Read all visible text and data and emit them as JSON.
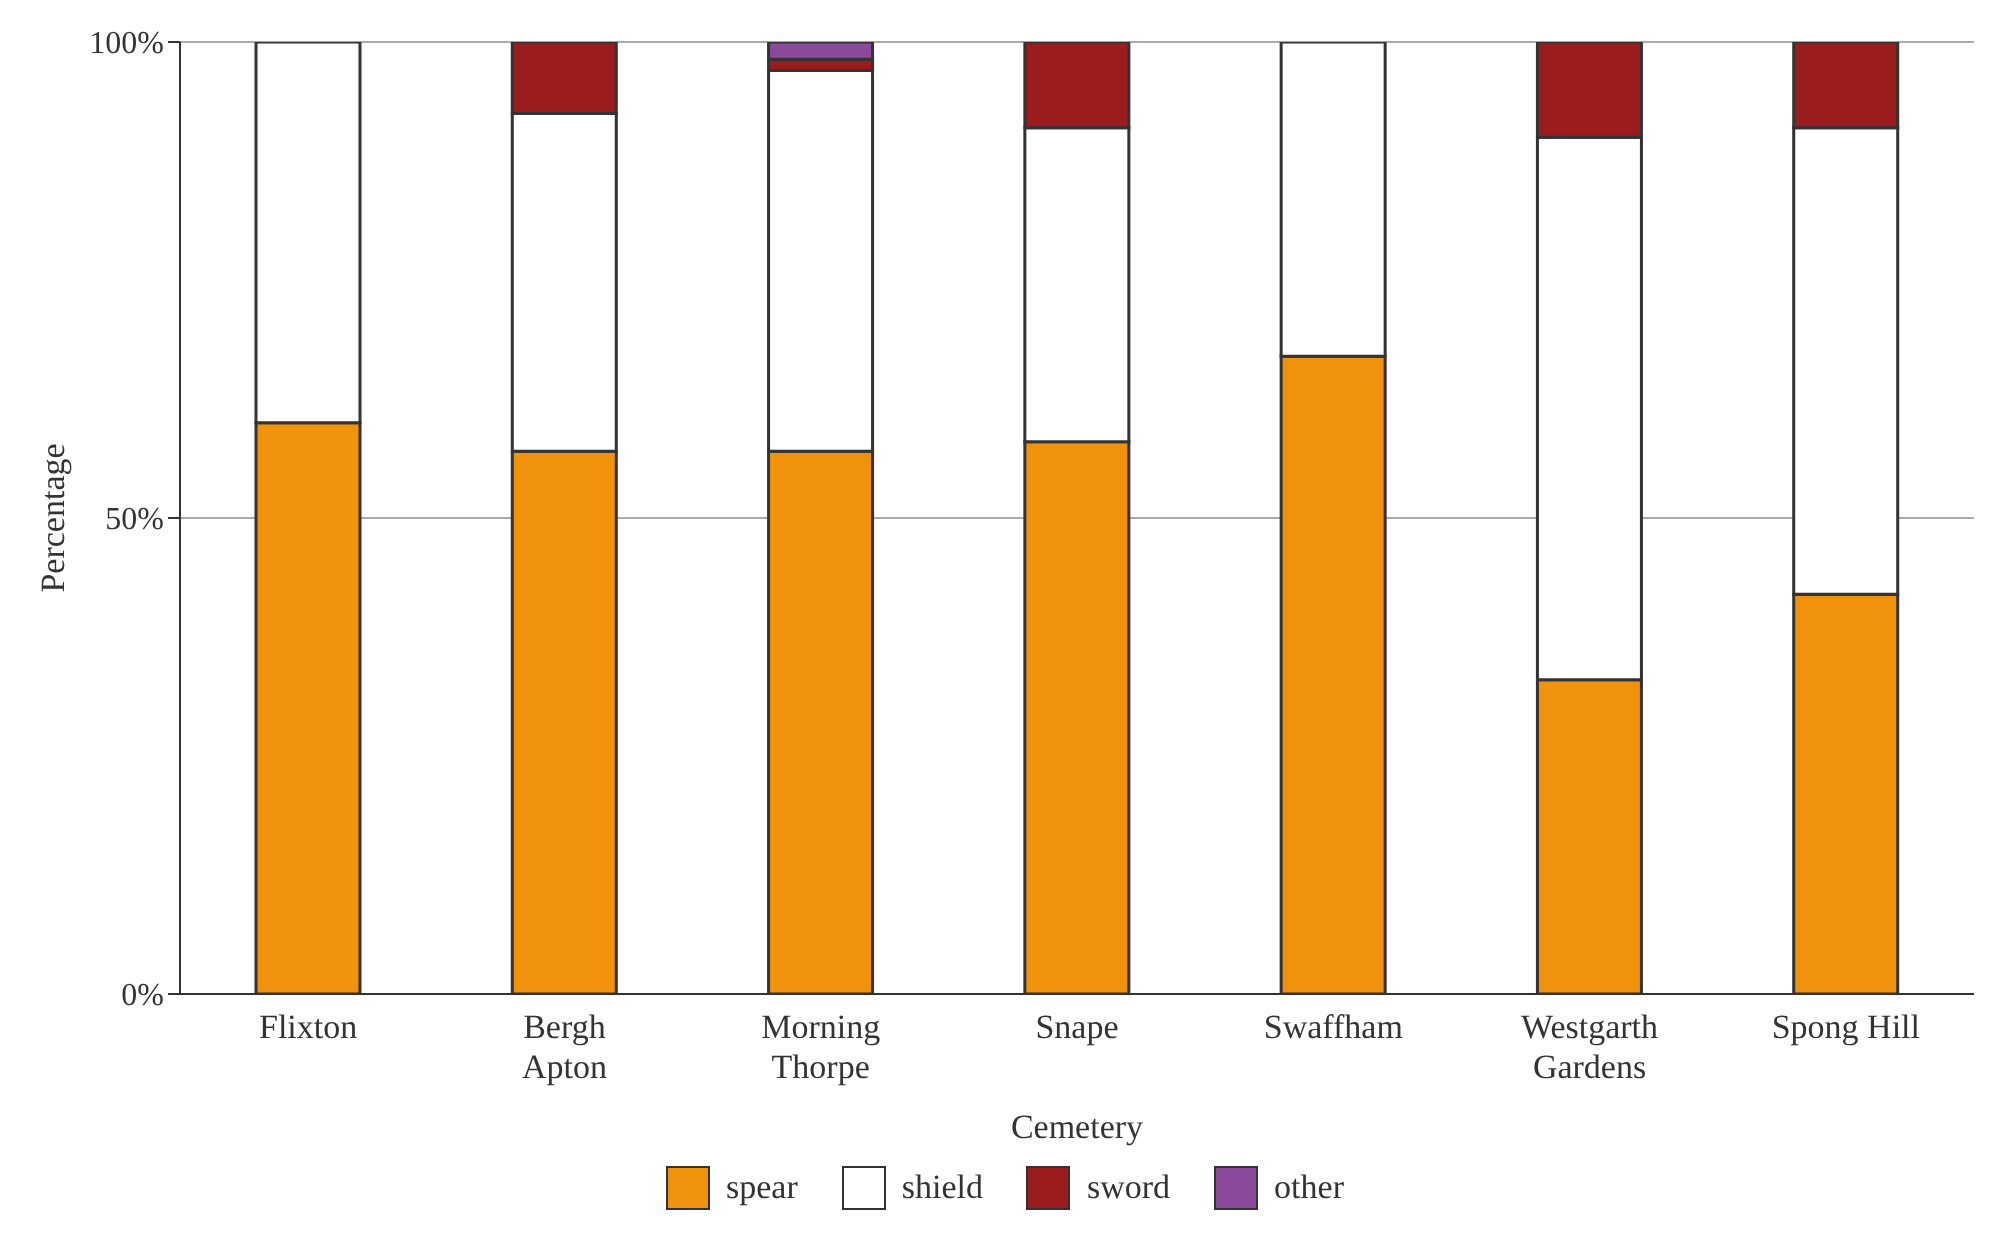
{
  "chart_data": {
    "type": "bar",
    "stacked": true,
    "xlabel": "Cemetery",
    "ylabel": "Percentage",
    "categories": [
      "Flixton",
      "Bergh Apton",
      "Morning Thorpe",
      "Snape",
      "Swaffham",
      "Westgarth Gardens",
      "Spong Hill"
    ],
    "series": [
      {
        "name": "spear",
        "color": "#f0920c",
        "values": [
          60,
          57,
          57,
          58,
          67,
          33,
          42
        ]
      },
      {
        "name": "shield",
        "color": "#ffffff",
        "values": [
          40,
          35.5,
          40,
          33,
          33,
          57,
          49
        ]
      },
      {
        "name": "sword",
        "color": "#9b1c1c",
        "values": [
          null,
          7.5,
          1.2,
          9,
          null,
          10,
          9
        ]
      },
      {
        "name": "other",
        "color": "#8b4a9c",
        "values": [
          null,
          null,
          1.8,
          null,
          null,
          null,
          null
        ]
      }
    ],
    "ylim": [
      0,
      100
    ],
    "yticks": [
      {
        "value": 0,
        "label": "0%"
      },
      {
        "value": 50,
        "label": "50%"
      },
      {
        "value": 100,
        "label": "100%"
      }
    ],
    "grid": "y",
    "legend": "bottom"
  }
}
